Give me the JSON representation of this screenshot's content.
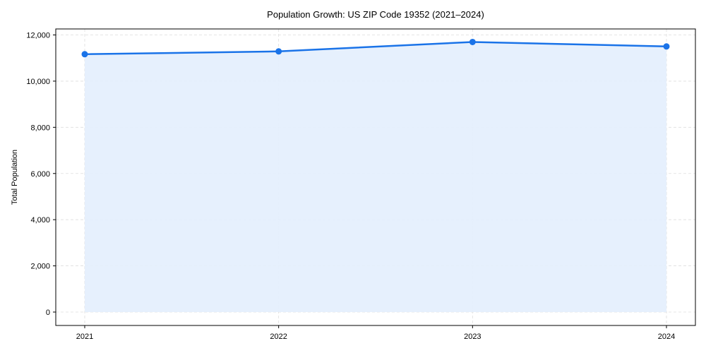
{
  "chart_data": {
    "type": "line",
    "title": "Population Growth: US ZIP Code 19352 (2021–2024)",
    "xlabel": "",
    "ylabel": "Total Population",
    "categories": [
      "2021",
      "2022",
      "2023",
      "2024"
    ],
    "series": [
      {
        "name": "Total Population",
        "values": [
          11166,
          11288,
          11695,
          11502
        ],
        "color": "#1a73e8",
        "fill": "#e3eefd"
      }
    ],
    "ylim": [
      -600,
      12300
    ],
    "yticks": [
      0,
      2000,
      4000,
      6000,
      8000,
      10000,
      12000
    ],
    "ytick_labels": [
      "0",
      "2,000",
      "4,000",
      "6,000",
      "8,000",
      "10,000",
      "12,000"
    ],
    "grid": true,
    "legend": null,
    "area_fill": true
  },
  "colors": {
    "line": "#1a73e8",
    "fill": "#e3eefd",
    "grid": "#dddddd",
    "axis": "#000000"
  }
}
